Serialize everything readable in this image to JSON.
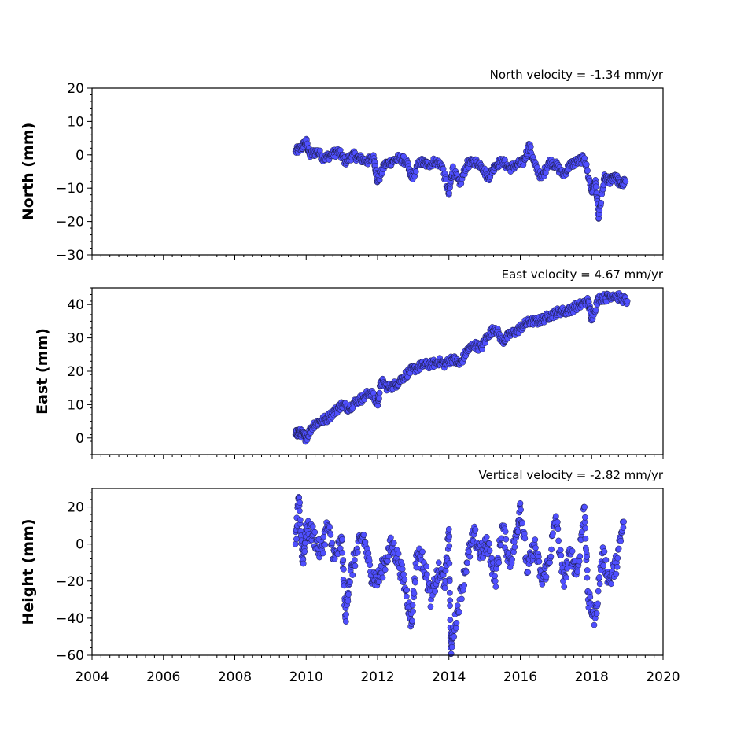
{
  "chart_data": [
    {
      "type": "scatter",
      "annotation": "North velocity = -1.34 mm/yr",
      "ylabel": "North (mm)",
      "xlabel": "",
      "xlim": [
        2004,
        2020
      ],
      "ylim": [
        -30,
        20
      ],
      "yticks": [
        "20",
        "10",
        "0",
        "−10",
        "−20",
        "−30"
      ],
      "ytick_values": [
        20,
        10,
        0,
        -10,
        -20,
        -30
      ],
      "xticks": [],
      "marker_color": "#4f4fff",
      "series": [
        {
          "x": [
            2009.7,
            2009.85,
            2010.0,
            2010.1,
            2010.3,
            2010.5,
            2010.7,
            2010.9,
            2011.1,
            2011.3,
            2011.5,
            2011.7,
            2011.9,
            2012.0,
            2012.2,
            2012.4,
            2012.6,
            2012.8,
            2012.95,
            2013.2,
            2013.4,
            2013.6,
            2013.8,
            2014.0,
            2014.1,
            2014.3,
            2014.5,
            2014.7,
            2014.9,
            2015.1,
            2015.3,
            2015.5,
            2015.7,
            2015.9,
            2016.1,
            2016.25,
            2016.4,
            2016.6,
            2016.8,
            2017.0,
            2017.2,
            2017.4,
            2017.6,
            2017.8,
            2018.0,
            2018.1,
            2018.2,
            2018.35,
            2018.5,
            2018.65,
            2018.8,
            2018.95
          ],
          "y": [
            1,
            2,
            4,
            0,
            1,
            -1,
            0,
            1,
            -2,
            0,
            -1,
            -2,
            -1,
            -8,
            -3,
            -2,
            -1,
            -2,
            -7,
            -2,
            -3,
            -2,
            -3,
            -12,
            -4,
            -9,
            -3,
            -2,
            -3,
            -7,
            -3,
            -2,
            -4,
            -3,
            -2,
            3,
            -3,
            -7,
            -2,
            -3,
            -6,
            -3,
            -2,
            -1,
            -11,
            -8,
            -19,
            -7,
            -8,
            -6,
            -9,
            -8
          ]
        }
      ]
    },
    {
      "type": "scatter",
      "annotation": "East velocity = 4.67 mm/yr",
      "ylabel": "East (mm)",
      "xlabel": "",
      "xlim": [
        2004,
        2020
      ],
      "ylim": [
        -5,
        45
      ],
      "yticks": [
        "40",
        "30",
        "20",
        "10",
        "0"
      ],
      "ytick_values": [
        40,
        30,
        20,
        10,
        0
      ],
      "xticks": [],
      "marker_color": "#4f4fff",
      "series": [
        {
          "x": [
            2009.7,
            2009.8,
            2009.9,
            2010.0,
            2010.2,
            2010.4,
            2010.6,
            2010.8,
            2011.0,
            2011.2,
            2011.4,
            2011.6,
            2011.8,
            2012.0,
            2012.1,
            2012.3,
            2012.5,
            2012.7,
            2012.9,
            2013.1,
            2013.3,
            2013.5,
            2013.7,
            2013.9,
            2014.1,
            2014.3,
            2014.5,
            2014.7,
            2014.9,
            2015.1,
            2015.3,
            2015.5,
            2015.7,
            2015.9,
            2016.1,
            2016.3,
            2016.5,
            2016.7,
            2016.9,
            2017.1,
            2017.3,
            2017.5,
            2017.7,
            2017.9,
            2018.0,
            2018.2,
            2018.4,
            2018.6,
            2018.8,
            2019.0
          ],
          "y": [
            1,
            2,
            1,
            0,
            4,
            5,
            6,
            8,
            10,
            9,
            11,
            12,
            14,
            10,
            17,
            15,
            16,
            18,
            20,
            21,
            22,
            22,
            23,
            22,
            24,
            22,
            26,
            28,
            27,
            31,
            33,
            29,
            31,
            32,
            34,
            35,
            35,
            36,
            37,
            38,
            38,
            39,
            40,
            41,
            36,
            42,
            42,
            43,
            42,
            41
          ]
        }
      ]
    },
    {
      "type": "scatter",
      "annotation": "Vertical velocity = -2.82 mm/yr",
      "ylabel": "Height (mm)",
      "xlabel": "",
      "xlim": [
        2004,
        2020
      ],
      "ylim": [
        -60,
        30
      ],
      "yticks": [
        "20",
        "0",
        "−20",
        "−40",
        "−60"
      ],
      "ytick_values": [
        20,
        0,
        -20,
        -40,
        -60
      ],
      "xticks": [
        "2004",
        "2006",
        "2008",
        "2010",
        "2012",
        "2014",
        "2016",
        "2018",
        "2020"
      ],
      "xtick_values": [
        2004,
        2006,
        2008,
        2010,
        2012,
        2014,
        2016,
        2018,
        2020
      ],
      "marker_color": "#4f4fff",
      "series": [
        {
          "x": [
            2009.7,
            2009.8,
            2009.9,
            2010.0,
            2010.2,
            2010.4,
            2010.6,
            2010.8,
            2011.0,
            2011.1,
            2011.2,
            2011.4,
            2011.6,
            2011.8,
            2012.0,
            2012.2,
            2012.4,
            2012.6,
            2012.8,
            2012.95,
            2013.1,
            2013.3,
            2013.5,
            2013.7,
            2013.9,
            2014.0,
            2014.05,
            2014.1,
            2014.3,
            2014.5,
            2014.7,
            2014.9,
            2015.1,
            2015.3,
            2015.5,
            2015.7,
            2015.9,
            2016.0,
            2016.2,
            2016.4,
            2016.6,
            2016.8,
            2017.0,
            2017.2,
            2017.4,
            2017.6,
            2017.8,
            2017.9,
            2018.1,
            2018.3,
            2018.5,
            2018.7,
            2018.9
          ],
          "y": [
            0,
            25,
            -10,
            8,
            5,
            -5,
            10,
            -8,
            2,
            -40,
            -20,
            -5,
            5,
            -15,
            -20,
            -10,
            0,
            -10,
            -25,
            -43,
            -5,
            -10,
            -30,
            -15,
            -20,
            8,
            -56,
            -50,
            -30,
            -10,
            5,
            -5,
            0,
            -20,
            10,
            -10,
            5,
            22,
            -15,
            0,
            -20,
            -10,
            15,
            -20,
            -5,
            -15,
            20,
            -30,
            -40,
            -5,
            -20,
            -10,
            12
          ]
        }
      ]
    }
  ]
}
